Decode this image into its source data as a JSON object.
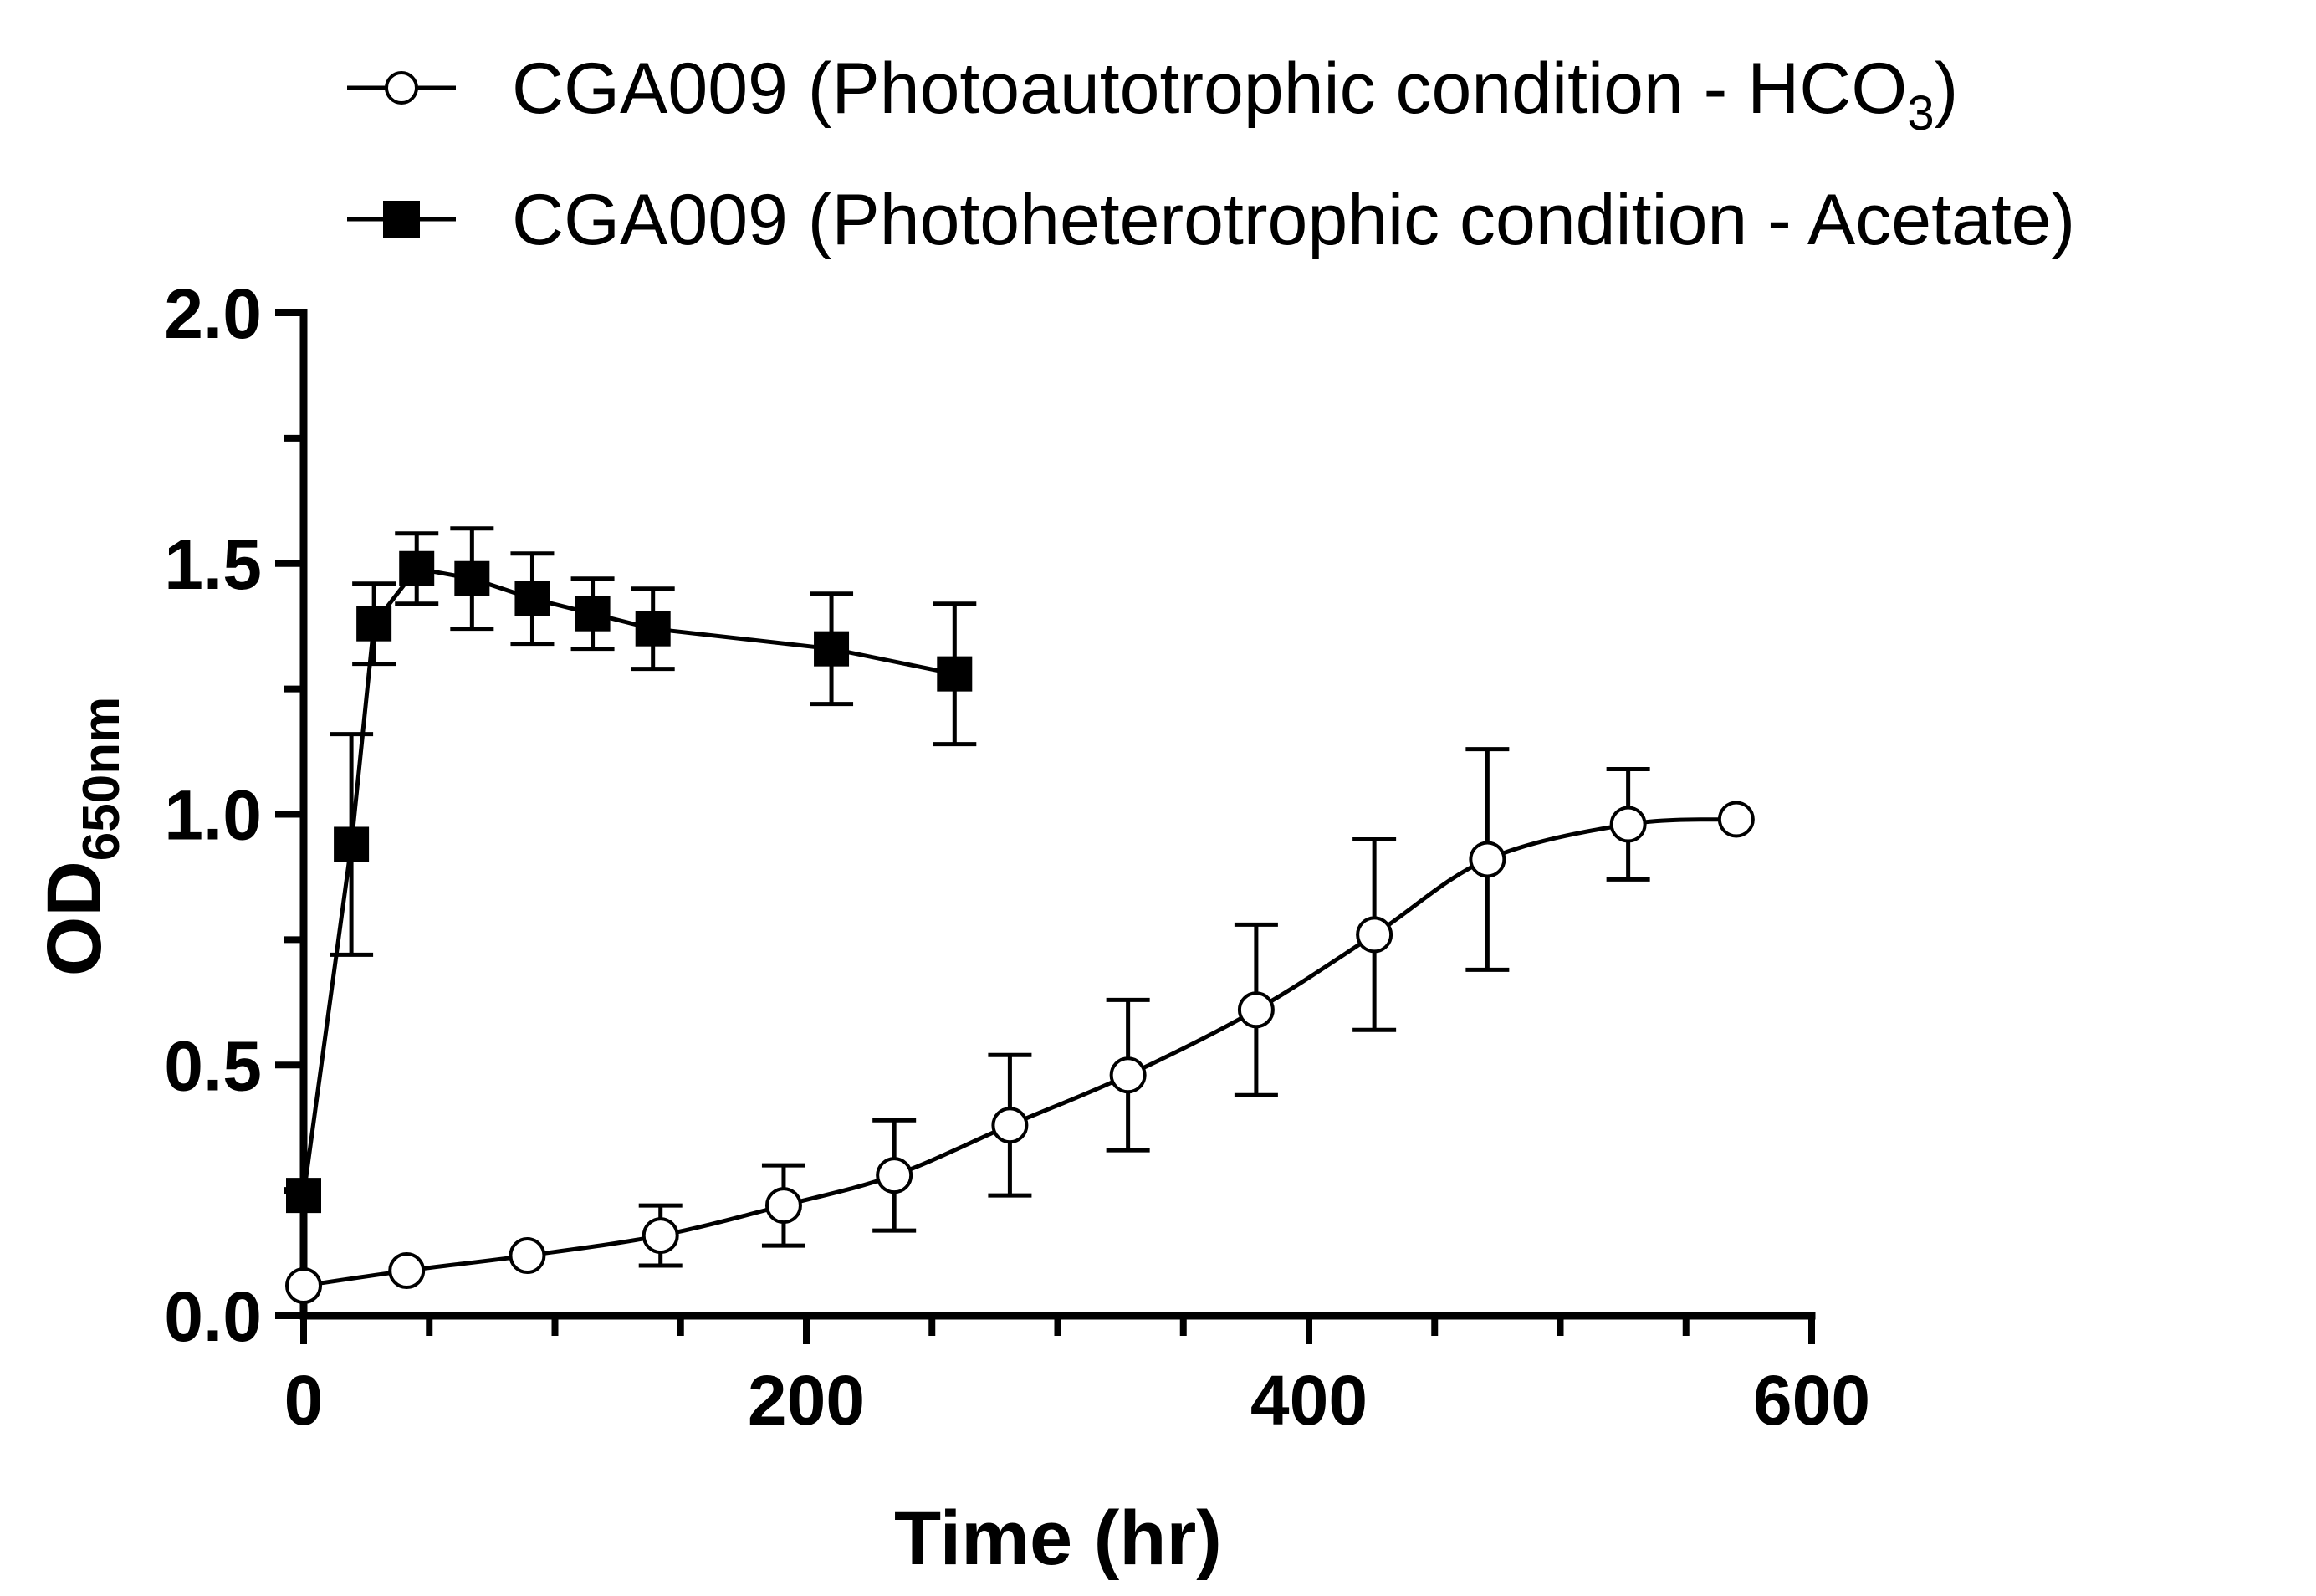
{
  "chart_data": {
    "type": "line",
    "title": "",
    "xlabel": "Time (hr)",
    "ylabel": {
      "main": "OD",
      "subscript": "650nm"
    },
    "xlim": [
      0,
      600
    ],
    "ylim": [
      0,
      2.0
    ],
    "xticks": [
      0,
      200,
      400,
      600
    ],
    "xtick_labels": [
      "0",
      "200",
      "400",
      "600"
    ],
    "yticks": [
      0.0,
      0.5,
      1.0,
      1.5,
      2.0
    ],
    "ytick_labels": [
      "0.0",
      "0.5",
      "1.0",
      "1.5",
      "2.0"
    ],
    "x_minor_step": 50,
    "y_minor_step": 0.25,
    "grid": false,
    "legend_position": "top",
    "series": [
      {
        "name": "CGA009 (Photoautotrophic condition - HCO3)",
        "legend_main": "CGA009 (Photoautotrophic condition - HCO",
        "legend_sub": "3",
        "legend_tail": ")",
        "marker": "open-circle",
        "smooth": true,
        "x": [
          0,
          41,
          89,
          142,
          191,
          235,
          281,
          328,
          379,
          426,
          471,
          527,
          570
        ],
        "y": [
          0.06,
          0.09,
          0.12,
          0.16,
          0.22,
          0.28,
          0.38,
          0.48,
          0.61,
          0.76,
          0.91,
          0.98,
          0.99
        ],
        "err": [
          0,
          0,
          0,
          0.06,
          0.08,
          0.11,
          0.14,
          0.15,
          0.17,
          0.19,
          0.22,
          0.11,
          0
        ]
      },
      {
        "name": "CGA009 (Photoheterotrophic condition - Acetate)",
        "legend_main": "CGA009 (Photoheterotrophic condition - Acetate)",
        "legend_sub": "",
        "legend_tail": "",
        "marker": "filled-square",
        "smooth": false,
        "x": [
          0,
          19,
          28,
          45,
          67,
          91,
          115,
          139,
          210,
          259
        ],
        "y": [
          0.24,
          0.94,
          1.38,
          1.49,
          1.47,
          1.43,
          1.4,
          1.37,
          1.33,
          1.28
        ],
        "err": [
          0,
          0.22,
          0.08,
          0.07,
          0.1,
          0.09,
          0.07,
          0.08,
          0.11,
          0.14
        ]
      }
    ]
  }
}
